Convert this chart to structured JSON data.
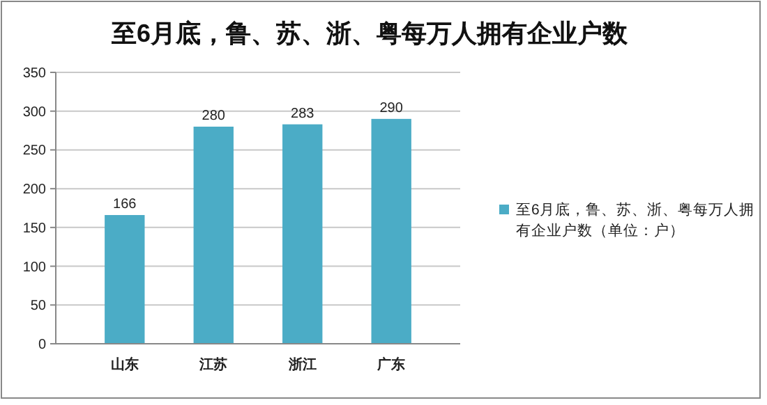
{
  "chart_data": {
    "type": "bar",
    "title": "至6月底，鲁、苏、浙、粤每万人拥有企业户数",
    "categories": [
      "山东",
      "江苏",
      "浙江",
      "广东"
    ],
    "series": [
      {
        "name": "至6月底，鲁、苏、浙、粤每万人拥有企业户数（单位：户）",
        "color": "#4bacc6",
        "values": [
          166,
          280,
          283,
          290
        ]
      }
    ],
    "ylim": [
      0,
      350
    ],
    "yticks": [
      0,
      50,
      100,
      150,
      200,
      250,
      300,
      350
    ],
    "grid": "y",
    "legend": "right",
    "data_labels": true
  }
}
